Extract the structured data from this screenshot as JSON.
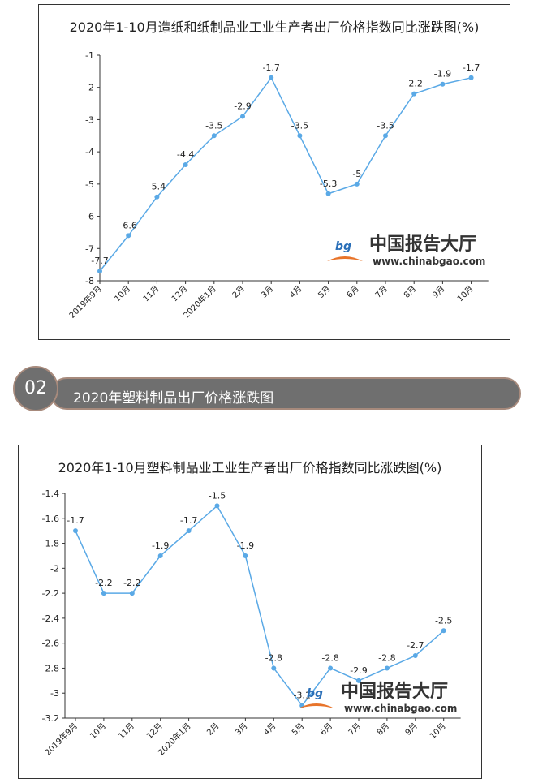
{
  "section": {
    "number": "02",
    "title": "2020年塑料制品出厂价格涨跌图"
  },
  "watermark": {
    "brand": "中国报告大厅",
    "url": "www.chinabgao.com"
  },
  "chart_data": [
    {
      "type": "line",
      "title": "2020年1-10月造纸和纸制品业工业生产者出厂价格指数同比涨跌图(%)",
      "categories": [
        "2019年9月",
        "10月",
        "11月",
        "12月",
        "2020年1月",
        "2月",
        "3月",
        "4月",
        "5月",
        "6月",
        "7月",
        "8月",
        "9月",
        "10月"
      ],
      "values": [
        -7.7,
        -6.6,
        -5.4,
        -4.4,
        -3.5,
        -2.9,
        -1.7,
        -3.5,
        -5.3,
        -5,
        -3.5,
        -2.2,
        -1.9,
        -1.7
      ],
      "yticks": [
        -1,
        -2,
        -3,
        -4,
        -5,
        -6,
        -7,
        -8
      ],
      "ylim": [
        -8,
        -1
      ],
      "color": "#5aa9e6"
    },
    {
      "type": "line",
      "title": "2020年1-10月塑料制品业工业生产者出厂价格指数同比涨跌图(%)",
      "categories": [
        "2019年9月",
        "10月",
        "11月",
        "12月",
        "2020年1月",
        "2月",
        "3月",
        "4月",
        "5月",
        "6月",
        "7月",
        "8月",
        "9月",
        "10月"
      ],
      "values": [
        -1.7,
        -2.2,
        -2.2,
        -1.9,
        -1.7,
        -1.5,
        -1.9,
        -2.8,
        -3.1,
        -2.8,
        -2.9,
        -2.8,
        -2.7,
        -2.5
      ],
      "yticks": [
        -1.4,
        -1.6,
        -1.8,
        -2,
        -2.2,
        -2.4,
        -2.6,
        -2.8,
        -3,
        -3.2
      ],
      "ylim": [
        -3.2,
        -1.4
      ],
      "color": "#5aa9e6"
    }
  ]
}
